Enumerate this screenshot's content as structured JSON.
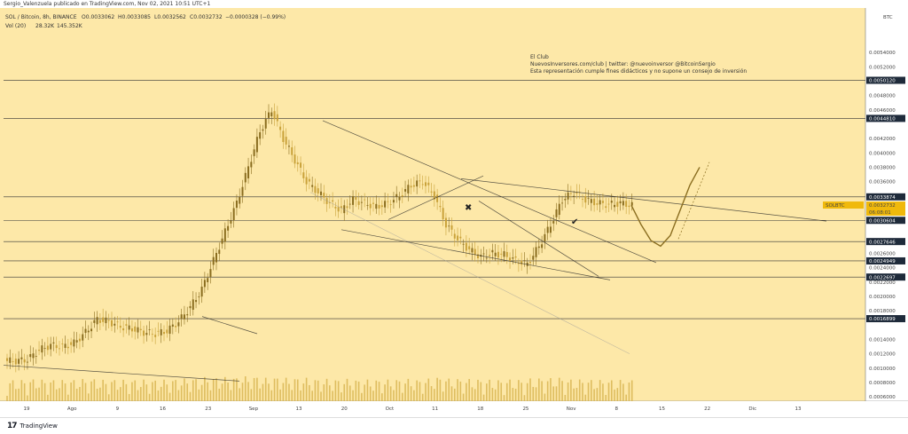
{
  "header": {
    "published_by": "Sergio_Valenzuela publicado en TradingView.com, Nov 02, 2021 10:51 UTC+1"
  },
  "chart_data": {
    "type": "candlestick",
    "symbol_line": "SOL / Bitcoin, 8h, BINANCE",
    "ohlc": {
      "o": "O0.0033062",
      "h": "H0.0033085",
      "l": "L0.0032562",
      "c": "C0.0032732",
      "change": "−0.0000328 (−0.99%)"
    },
    "volume_label": "Vol (20)",
    "volume_values": [
      "28.32K",
      "145.352K"
    ],
    "annotation_lines": [
      "El Club",
      "NuevosInversores.com/club | twitter: @nuevoinversor @BitcoinSergio",
      "Esta representación cumple fines didácticos y no supone un consejo de inversión"
    ],
    "y_axis": {
      "currency": "BTC",
      "range": [
        0.00054,
        0.00602
      ],
      "ticks": [
        "0.0054000",
        "0.0052000",
        "0.0048000",
        "0.0046000",
        "0.0042000",
        "0.0040000",
        "0.0038000",
        "0.0036000",
        "0.0026000",
        "0.0024000",
        "0.0022000",
        "0.0020000",
        "0.0018000",
        "0.0014000",
        "0.0012000",
        "0.0010000",
        "0.0008000",
        "0.0006000"
      ]
    },
    "horizontal_levels": [
      {
        "value": 0.005012,
        "label": "0.0050120"
      },
      {
        "value": 0.004481,
        "label": "0.0044810"
      },
      {
        "value": 0.0033874,
        "label": "0.0033874"
      },
      {
        "value": 0.0030604,
        "label": "0.0030604"
      },
      {
        "value": 0.0027646,
        "label": "0.0027646"
      },
      {
        "value": 0.0024949,
        "label": "0.0024949"
      },
      {
        "value": 0.0022697,
        "label": "0.0022697"
      },
      {
        "value": 0.0016899,
        "label": "0.0016899"
      }
    ],
    "current_price": {
      "symbol": "SOLBTC",
      "value": "0.0032732",
      "countdown": "06:08:01"
    },
    "x_axis": {
      "labels": [
        "19",
        "Ago",
        "9",
        "16",
        "23",
        "Sep",
        "13",
        "20",
        "Oct",
        "11",
        "18",
        "25",
        "Nov",
        "8",
        "15",
        "22",
        "Dic",
        "13"
      ]
    },
    "close_path": [
      [
        0.0011,
        0.00112,
        0.00125,
        0.00132,
        0.0013,
        0.00135,
        0.0015,
        0.00168,
        0.00165,
        0.00158,
        0.00155,
        0.0015,
        0.00148,
        0.00152,
        0.00165,
        0.00185,
        0.0021,
        0.0025,
        0.0029,
        0.0033,
        0.0038,
        0.0043,
        0.0046,
        0.0042,
        0.0039,
        0.0036,
        0.00345,
        0.0033,
        0.0032,
        0.00335,
        0.0033,
        0.00325,
        0.0033,
        0.0034,
        0.00355,
        0.0036,
        0.0034,
        0.003,
        0.0028,
        0.00265,
        0.00255,
        0.0026,
        0.00258,
        0.0025,
        0.00245,
        0.0027,
        0.003,
        0.00335,
        0.00345,
        0.00335,
        0.0033,
        0.00328,
        0.0033,
        0.00327
      ]
    ],
    "projection_path": [
      0.00327,
      0.003,
      0.00278,
      0.0027,
      0.00285,
      0.0032,
      0.00355,
      0.0038
    ]
  },
  "footer": {
    "brand": "TradingView"
  }
}
